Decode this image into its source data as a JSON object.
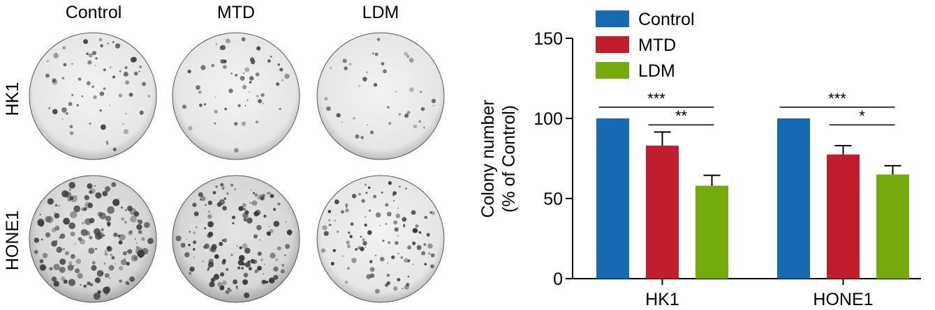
{
  "panel_left": {
    "column_labels": [
      "Control",
      "MTD",
      "LDM"
    ],
    "row_labels": [
      "HK1",
      "HONE1"
    ]
  },
  "chart_data": {
    "type": "bar",
    "categories": [
      "HK1",
      "HONE1"
    ],
    "series": [
      {
        "name": "Control",
        "values": [
          100,
          100
        ],
        "errors": [
          0,
          0
        ],
        "color": "#1769b1"
      },
      {
        "name": "MTD",
        "values": [
          83,
          77.5
        ],
        "errors": [
          8.5,
          5.5
        ],
        "color": "#c01d2d"
      },
      {
        "name": "LDM",
        "values": [
          58,
          65
        ],
        "errors": [
          6.5,
          5.5
        ],
        "color": "#74aa0b"
      }
    ],
    "ylabel_line1": "Colony number",
    "ylabel_line2": "(% of Control)",
    "ylim": [
      0,
      150
    ],
    "yticks": [
      0,
      50,
      100,
      150
    ],
    "legend": {
      "position": "top",
      "entries": [
        "Control",
        "MTD",
        "LDM"
      ]
    },
    "grid": false,
    "significance": [
      {
        "category": "HK1",
        "from": "Control",
        "to": "LDM",
        "label": "***"
      },
      {
        "category": "HK1",
        "from": "MTD",
        "to": "LDM",
        "label": "**"
      },
      {
        "category": "HONE1",
        "from": "Control",
        "to": "LDM",
        "label": "***"
      },
      {
        "category": "HONE1",
        "from": "MTD",
        "to": "LDM",
        "label": "*"
      }
    ]
  }
}
